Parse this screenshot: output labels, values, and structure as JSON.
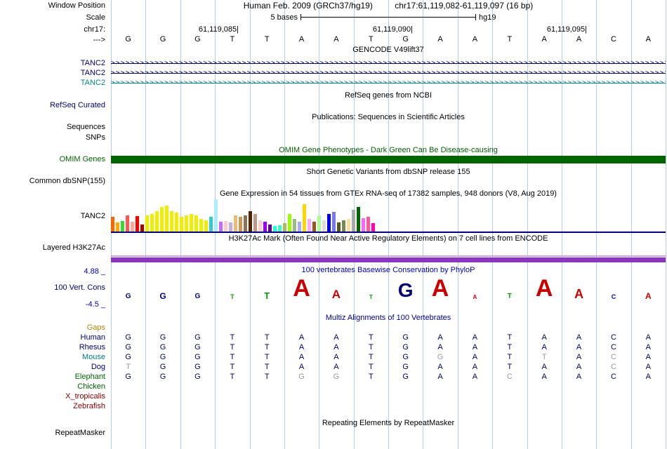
{
  "header": {
    "window_position_label": "Window Position",
    "title_assembly": "Human Feb. 2009 (GRCh37/hg19)",
    "title_position": "chr17:61,119,082-61,119,097 (16 bp)",
    "scale_label": "Scale",
    "scale_value": "5 bases",
    "assembly_tag": "hg19",
    "chrom_label": "chr17:",
    "strand_label": "--->",
    "ruler_labels": [
      "61,119,085|",
      "61,119,090|",
      "61,119,095|"
    ]
  },
  "sequence": {
    "bases": [
      "G",
      "G",
      "G",
      "T",
      "T",
      "A",
      "A",
      "T",
      "G",
      "A",
      "A",
      "T",
      "A",
      "A",
      "C",
      "A"
    ]
  },
  "gencode": {
    "header": "GENCODE V49lift37",
    "rows": [
      {
        "label": "TANC2",
        "color": "#000080",
        "direction": ">"
      },
      {
        "label": "TANC2",
        "color": "#000080",
        "direction": ">"
      },
      {
        "label": "TANC2",
        "color": "#008b8b",
        "direction": ">"
      }
    ]
  },
  "refseq": {
    "header": "RefSeq genes from NCBI",
    "track_label": "RefSeq Curated",
    "label_color": "#000080"
  },
  "publications": {
    "header": "Publications: Sequences in Scientific Articles",
    "track_labels": [
      "Sequences",
      "SNPs"
    ]
  },
  "omim": {
    "header": "OMIM Gene Phenotypes - Dark Green Can Be Disease-causing",
    "track_label": "OMIM Genes",
    "header_color": "#006400",
    "bar_color": "#006400"
  },
  "dbsnp": {
    "header": "Short Genetic Variants from dbSNP release 155",
    "track_label": "Common dbSNP(155)"
  },
  "gtex": {
    "header": "Gene Expression in 54 tissues from GTEx RNA-seq of 17382 samples, 948 donors (V8, Aug 2019)",
    "track_label": "TANC2",
    "baseline_color": "#000080",
    "bar_colors": [
      "#FF6600",
      "#FFAA00",
      "#33DD33",
      "#FF5555",
      "#FFAA99",
      "#FF0000",
      "#AA0000",
      "#EEEE00",
      "#EEEE00",
      "#EEEE00",
      "#EEEE00",
      "#EEEE00",
      "#EEEE00",
      "#EEEE00",
      "#EEEE00",
      "#EEEE00",
      "#EEEE00",
      "#EEEE00",
      "#EEEE00",
      "#EEEE00",
      "#33CCCC",
      "#AAEEFF",
      "#CC66FF",
      "#FFCCCC",
      "#CCAADD",
      "#EEBB77",
      "#CC9955",
      "#8B7355",
      "#552200",
      "#BB9988",
      "#FFCCCC",
      "#9900FF",
      "#660099",
      "#22FFDD",
      "#33FFC2",
      "#AABB66",
      "#99FF00",
      "#99BB88",
      "#AAAAFF",
      "#FFD700",
      "#FFAAFF",
      "#995522",
      "#AAFF99",
      "#DDDDDD",
      "#0000FF",
      "#7777FF",
      "#555522",
      "#778855",
      "#FFDD99",
      "#AAAAAA",
      "#006600",
      "#FF66FF",
      "#FF5599",
      "#FF00BB"
    ],
    "bar_heights": [
      0.45,
      0.28,
      0.33,
      0.5,
      0.3,
      0.48,
      0.22,
      0.5,
      0.55,
      0.62,
      0.75,
      0.8,
      0.62,
      0.58,
      0.45,
      0.5,
      0.55,
      0.5,
      0.4,
      0.35,
      0.45,
      1.0,
      0.3,
      0.33,
      0.28,
      0.5,
      0.45,
      0.5,
      0.62,
      0.55,
      0.35,
      0.3,
      0.22,
      0.18,
      0.2,
      0.26,
      0.55,
      0.4,
      0.3,
      0.85,
      0.4,
      0.3,
      0.5,
      0.35,
      0.55,
      0.6,
      0.28,
      0.35,
      0.4,
      0.68,
      0.75,
      0.42,
      0.46,
      0.25
    ]
  },
  "h3k27ac": {
    "header": "H3K27Ac Mark (Often Found Near Active Regulatory Elements) on 7 cell lines from ENCODE",
    "track_label": "Layered H3K27Ac",
    "band_top_color": "#d8a0d8",
    "band_color": "#8c35c0"
  },
  "phylop": {
    "header": "100 vertebrates Basewise Conservation by PhyloP",
    "header_color": "#0000cc",
    "track_label": "100 Vert. Cons",
    "label_color": "#000080",
    "max_label": "4.88 _",
    "min_label": "-4.5 _",
    "letter_heights": [
      10,
      12,
      10,
      9,
      13,
      34,
      17,
      8,
      28,
      34,
      8,
      10,
      34,
      18,
      9,
      12
    ],
    "base_colors": {
      "A": "#cc0000",
      "C": "#0000cc",
      "G": "#000080",
      "T": "#00a000"
    }
  },
  "multiz": {
    "header": "Multiz Alignments of 100 Vertebrates",
    "header_color": "#000099",
    "letter_color": "#000066",
    "gray_color": "#999999",
    "species": [
      {
        "name": "Gaps",
        "color": "#b8860b",
        "seq": "",
        "gray": []
      },
      {
        "name": "Human",
        "color": "#000080",
        "seq": "GGGTTAATGAATAACA",
        "gray": []
      },
      {
        "name": "Rhesus",
        "color": "#000080",
        "seq": "GGGTTAATGAATAACA",
        "gray": []
      },
      {
        "name": "Mouse",
        "color": "#008080",
        "seq": "GGGTTAATGGATTACA",
        "gray": [
          9,
          12,
          14
        ]
      },
      {
        "name": "Dog",
        "color": "#000080",
        "seq": "TGGTTAATGAATAACA",
        "gray": [
          0,
          14
        ]
      },
      {
        "name": "Elephant",
        "color": "#006400",
        "seq": "GGGTTGGTGAACAACA",
        "gray": [
          5,
          6,
          11
        ]
      },
      {
        "name": "Chicken",
        "color": "#006400",
        "seq": "",
        "gray": []
      },
      {
        "name": "X_tropicalis",
        "color": "#8b0000",
        "seq": "",
        "gray": []
      },
      {
        "name": "Zebrafish",
        "color": "#8b0000",
        "seq": "",
        "gray": []
      }
    ]
  },
  "repeatmasker": {
    "header": "Repeating Elements by RepeatMasker",
    "track_label": "RepeatMasker"
  },
  "grid": {
    "line_color": "#b7cde6"
  }
}
